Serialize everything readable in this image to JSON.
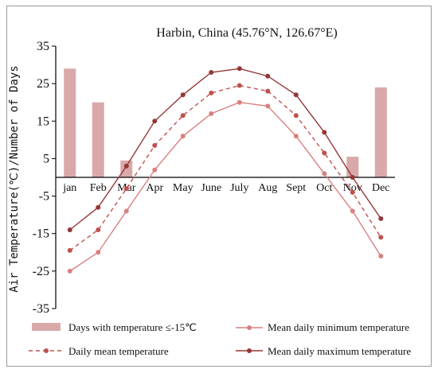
{
  "chart_data": {
    "type": "bar+line",
    "title": "Harbin, China (45.76°N, 126.67°E)",
    "ylabel": "Air Temperature(℃)/Number of Days",
    "xlabel": "",
    "ylim": [
      -35,
      35
    ],
    "yticks": [
      35,
      25,
      15,
      5,
      -5,
      -15,
      -25,
      -35
    ],
    "categories": [
      "jan",
      "Feb",
      "Mar",
      "Apr",
      "May",
      "June",
      "July",
      "Aug",
      "Sept",
      "Oct",
      "Nov",
      "Dec"
    ],
    "grid": false,
    "legend_position": "bottom",
    "bars": {
      "name": "Days with temperature ≤-15℃",
      "color": "#d9a9a9",
      "values": [
        29,
        20,
        4.5,
        0,
        0,
        0,
        0,
        0,
        0,
        0,
        5.5,
        24
      ]
    },
    "series": [
      {
        "name": "Mean daily minimum temperature",
        "color": "#d98080",
        "style": "solid",
        "values": [
          -25,
          -20,
          -9,
          2,
          11,
          17,
          20,
          19,
          11,
          1,
          -9,
          -21
        ]
      },
      {
        "name": "Daily mean temperature",
        "color": "#c0504d",
        "style": "dashed",
        "values": [
          -19.5,
          -14,
          -3,
          8.5,
          16.5,
          22.5,
          24.5,
          23,
          16.5,
          6.5,
          -4,
          -16
        ]
      },
      {
        "name": "Mean daily maximum temperature",
        "color": "#953735",
        "style": "solid",
        "values": [
          -14,
          -8,
          3,
          15,
          22,
          28,
          29,
          27,
          22,
          12,
          0,
          -11
        ]
      }
    ]
  }
}
